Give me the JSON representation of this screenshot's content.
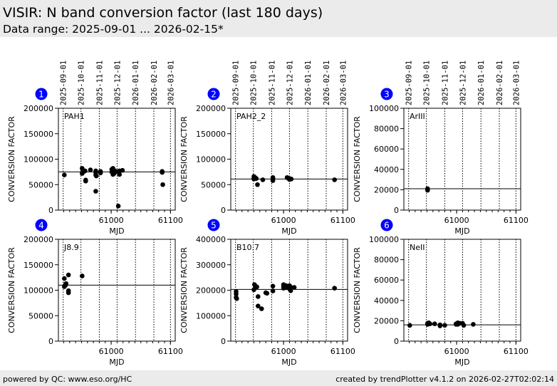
{
  "header": {
    "title": "VISIR: N band conversion factor (last 180 days)",
    "subtitle": "Data range: 2025-09-01 ... 2026-02-15*"
  },
  "footer": {
    "left": "powered by QC: www.eso.org/HC",
    "right": "created by trendPlotter v4.1.2 on 2026-02-27T02:02:14"
  },
  "colors": {
    "badge": "#0000ff",
    "badge_text": "#ffffff",
    "points": "#000000"
  },
  "chart_data": {
    "type": "scatter",
    "xlabel": "MJD",
    "ylabel": "CONVERSION FACTOR",
    "xlim": [
      60911,
      61108
    ],
    "xticks": [
      61000,
      61100
    ],
    "xtick_labels": [
      "61000",
      "61100"
    ],
    "date_ticks": [
      {
        "label": "2025-09-01",
        "mjd": 60919
      },
      {
        "label": "2025-10-01",
        "mjd": 60949
      },
      {
        "label": "2025-11-01",
        "mjd": 60980
      },
      {
        "label": "2025-12-01",
        "mjd": 61010
      },
      {
        "label": "2026-01-01",
        "mjd": 61041
      },
      {
        "label": "2026-02-01",
        "mjd": 61072
      },
      {
        "label": "2026-03-01",
        "mjd": 61100
      }
    ],
    "panels": [
      {
        "number": "1",
        "name": "PAH1",
        "ylim": [
          0,
          200000
        ],
        "yticks": [
          0,
          50000,
          100000,
          150000,
          200000
        ],
        "ytick_labels": [
          "0",
          "50000",
          "100000",
          "150000",
          "200000"
        ],
        "median": 75000,
        "points": [
          [
            60921,
            69000
          ],
          [
            60951,
            82000
          ],
          [
            60951,
            72000
          ],
          [
            60952,
            78000
          ],
          [
            60953,
            75000
          ],
          [
            60956,
            77000
          ],
          [
            60957,
            59000
          ],
          [
            60957,
            57000
          ],
          [
            60965,
            79000
          ],
          [
            60974,
            77000
          ],
          [
            60974,
            74000
          ],
          [
            60974,
            69000
          ],
          [
            60975,
            67000
          ],
          [
            60974,
            37000
          ],
          [
            60982,
            76000
          ],
          [
            60982,
            73000
          ],
          [
            61001,
            75000
          ],
          [
            61001,
            80000
          ],
          [
            61003,
            82000
          ],
          [
            61003,
            70000
          ],
          [
            61005,
            78000
          ],
          [
            61005,
            72000
          ],
          [
            61008,
            76000
          ],
          [
            61012,
            8000
          ],
          [
            61014,
            70000
          ],
          [
            61014,
            77000
          ],
          [
            61019,
            78000
          ],
          [
            61086,
            76000
          ],
          [
            61086,
            74000
          ],
          [
            61087,
            50000
          ]
        ]
      },
      {
        "number": "2",
        "name": "PAH2_2",
        "ylim": [
          0,
          200000
        ],
        "yticks": [
          0,
          50000,
          100000,
          150000,
          200000
        ],
        "ytick_labels": [
          "0",
          "50000",
          "100000",
          "150000",
          "200000"
        ],
        "median": 61000,
        "points": [
          [
            60950,
            66000
          ],
          [
            60950,
            63000
          ],
          [
            60950,
            61000
          ],
          [
            60952,
            64000
          ],
          [
            60954,
            62000
          ],
          [
            60956,
            50000
          ],
          [
            60965,
            59500
          ],
          [
            60982,
            64000
          ],
          [
            60982,
            61000
          ],
          [
            60982,
            58000
          ],
          [
            61006,
            64000
          ],
          [
            61007,
            63000
          ],
          [
            61010,
            60000
          ],
          [
            61010,
            62000
          ],
          [
            61013,
            61000
          ],
          [
            61086,
            59500
          ]
        ]
      },
      {
        "number": "3",
        "name": "ArIII",
        "ylim": [
          0,
          100000
        ],
        "yticks": [
          0,
          20000,
          40000,
          60000,
          80000,
          100000
        ],
        "ytick_labels": [
          "0",
          "20000",
          "40000",
          "60000",
          "80000",
          "100000"
        ],
        "median": 21000,
        "points": [
          [
            60951,
            21000
          ],
          [
            60951,
            20000
          ],
          [
            60951,
            19500
          ]
        ]
      },
      {
        "number": "4",
        "name": "J8.9",
        "ylim": [
          0,
          200000
        ],
        "yticks": [
          0,
          50000,
          100000,
          150000,
          200000
        ],
        "ytick_labels": [
          "0",
          "50000",
          "100000",
          "150000",
          "200000"
        ],
        "median": 110000,
        "points": [
          [
            60921,
            123000
          ],
          [
            60921,
            107000
          ],
          [
            60923,
            110000
          ],
          [
            60923,
            112000
          ],
          [
            60924,
            113000
          ],
          [
            60928,
            130000
          ],
          [
            60928,
            99000
          ],
          [
            60928,
            95000
          ],
          [
            60951,
            128000
          ]
        ]
      },
      {
        "number": "5",
        "name": "B10.7",
        "ylim": [
          0,
          400000
        ],
        "yticks": [
          0,
          100000,
          200000,
          300000,
          400000
        ],
        "ytick_labels": [
          "0",
          "100000",
          "200000",
          "300000",
          "400000"
        ],
        "median": 203000,
        "points": [
          [
            60920,
            195000
          ],
          [
            60920,
            185000
          ],
          [
            60920,
            172000
          ],
          [
            60921,
            167000
          ],
          [
            60950,
            202000
          ],
          [
            60951,
            222000
          ],
          [
            60953,
            215000
          ],
          [
            60955,
            213000
          ],
          [
            60957,
            175000
          ],
          [
            60957,
            138000
          ],
          [
            60963,
            127000
          ],
          [
            60970,
            190000
          ],
          [
            60972,
            188000
          ],
          [
            60982,
            216000
          ],
          [
            60982,
            197000
          ],
          [
            61000,
            222000
          ],
          [
            61000,
            215000
          ],
          [
            61000,
            208000
          ],
          [
            61004,
            218000
          ],
          [
            61004,
            210000
          ],
          [
            61006,
            214000
          ],
          [
            61010,
            205000
          ],
          [
            61010,
            218000
          ],
          [
            61012,
            198000
          ],
          [
            61012,
            212000
          ],
          [
            61018,
            211000
          ],
          [
            61086,
            208000
          ]
        ]
      },
      {
        "number": "6",
        "name": "NeII",
        "ylim": [
          0,
          100000
        ],
        "yticks": [
          0,
          20000,
          40000,
          60000,
          80000,
          100000
        ],
        "ytick_labels": [
          "0",
          "20000",
          "40000",
          "60000",
          "80000",
          "100000"
        ],
        "median": 16000,
        "points": [
          [
            60921,
            15500
          ],
          [
            60951,
            16500
          ],
          [
            60951,
            17500
          ],
          [
            60953,
            18000
          ],
          [
            60955,
            17000
          ],
          [
            60963,
            17000
          ],
          [
            60972,
            15000
          ],
          [
            60972,
            16000
          ],
          [
            60980,
            15500
          ],
          [
            60999,
            17000
          ],
          [
            60999,
            16500
          ],
          [
            61002,
            18000
          ],
          [
            61002,
            16500
          ],
          [
            61005,
            17500
          ],
          [
            61010,
            17500
          ],
          [
            61012,
            15500
          ],
          [
            61028,
            16500
          ]
        ]
      }
    ]
  }
}
